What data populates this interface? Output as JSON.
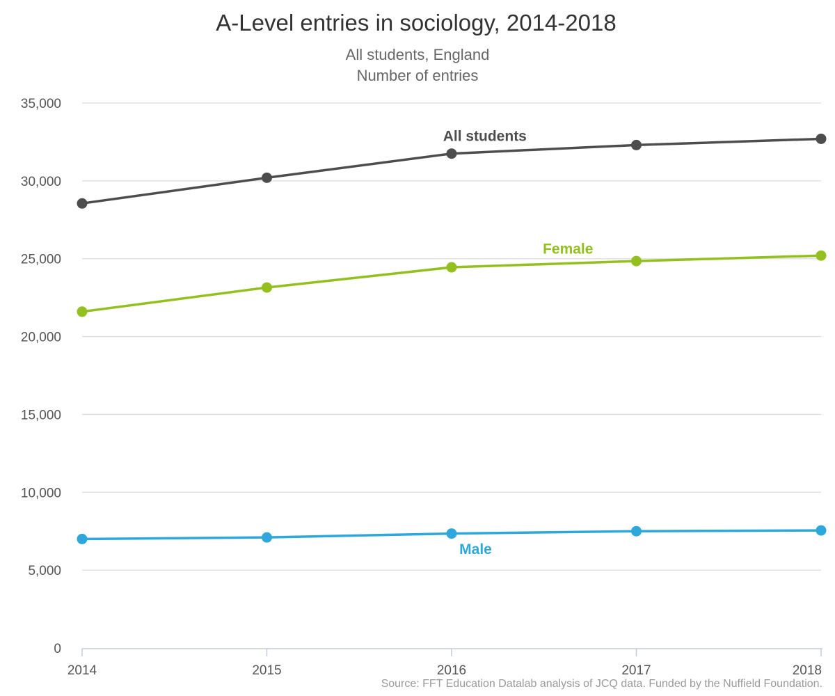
{
  "chart_data": {
    "type": "line",
    "title": "A-Level entries in sociology, 2014-2018",
    "subtitle_lines": [
      "All students, England",
      "Number of entries"
    ],
    "source": "Source: FFT Education Datalab analysis of JCQ data. Funded by the Nuffield Foundation.",
    "xlabel": "",
    "ylabel": "",
    "x": [
      "2014",
      "2015",
      "2016",
      "2017",
      "2018"
    ],
    "ylim": [
      0,
      35000
    ],
    "yticks": [
      0,
      5000,
      10000,
      15000,
      20000,
      25000,
      30000,
      35000
    ],
    "ytick_labels": [
      "0",
      "5,000",
      "10,000",
      "15,000",
      "20,000",
      "25,000",
      "30,000",
      "35,000"
    ],
    "grid": true,
    "series": [
      {
        "name": "All students",
        "color": "#4d4d4d",
        "values": [
          28550,
          30200,
          31750,
          32300,
          32700
        ]
      },
      {
        "name": "Female",
        "color": "#93c01f",
        "values": [
          21600,
          23150,
          24450,
          24850,
          25200
        ]
      },
      {
        "name": "Male",
        "color": "#2ea8dc",
        "values": [
          7000,
          7100,
          7350,
          7500,
          7550
        ]
      }
    ]
  }
}
